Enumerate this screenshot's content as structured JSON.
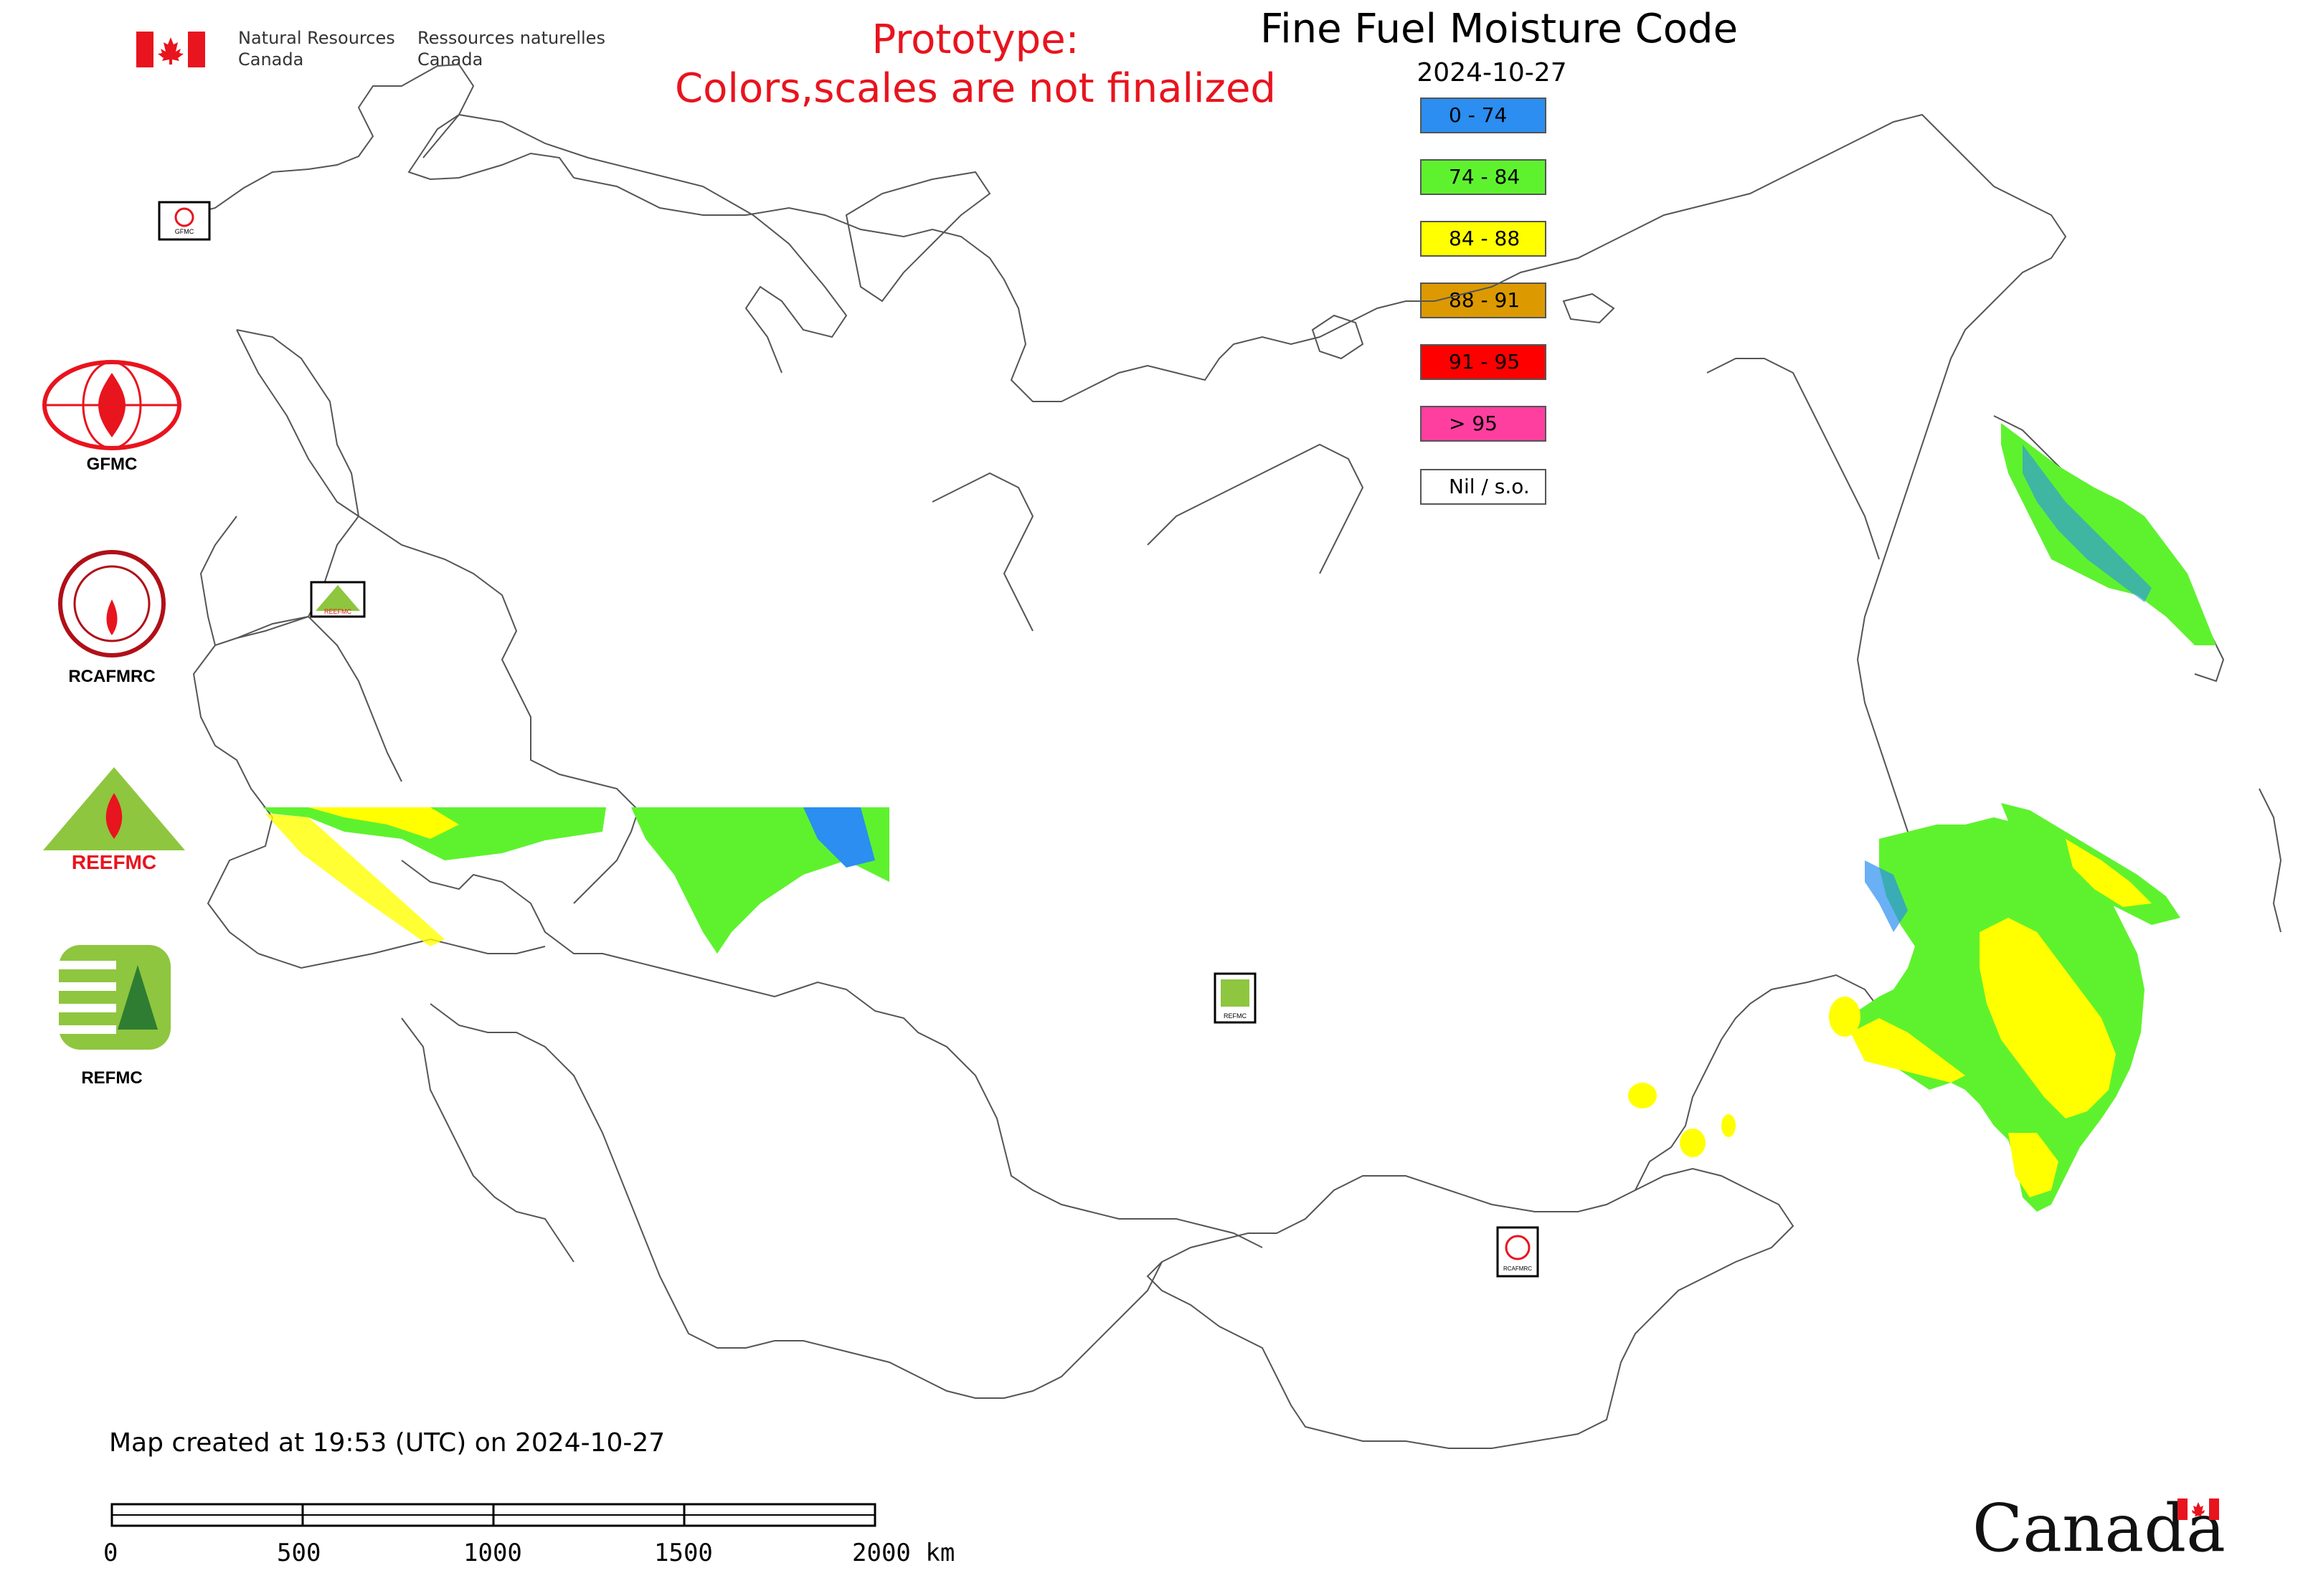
{
  "header": {
    "agency_en": [
      "Natural Resources",
      "Canada"
    ],
    "agency_fr": [
      "Ressources naturelles",
      "Canada"
    ],
    "prototype_lines": [
      "Prototype:",
      "Colors,scales are not finalized"
    ],
    "title": "Fine Fuel Moisture Code",
    "date": "2024-10-27"
  },
  "legend": [
    {
      "label": "0 - 74",
      "color": "#2b8ef0"
    },
    {
      "label": "74 - 84",
      "color": "#5ef22e"
    },
    {
      "label": "84 - 88",
      "color": "#ffff00"
    },
    {
      "label": "88 - 91",
      "color": "#dc9a00"
    },
    {
      "label": "91 - 95",
      "color": "#ff0000"
    },
    {
      "label": "> 95",
      "color": "#ff3fa0"
    },
    {
      "label": "Nil / s.o.",
      "color": "#ffffff"
    }
  ],
  "logos": [
    {
      "label": "GFMC"
    },
    {
      "label": "RCAFMRC"
    },
    {
      "label": "REEFMC"
    },
    {
      "label": "REFMC"
    }
  ],
  "map_markers": {
    "gfmc": "GFMC",
    "reefmc": "REEFMC",
    "refmc": "REFMC",
    "rcafmrc": "RCAFMRC"
  },
  "footer": {
    "created": "Map created at 19:53 (UTC) on 2024-10-27",
    "scale_labels": [
      "0",
      "500",
      "1000",
      "1500",
      "2000 km"
    ],
    "wordmark": "Canada"
  },
  "colors": {
    "prototype_text": "#e8141e",
    "border_line": "#555555"
  }
}
